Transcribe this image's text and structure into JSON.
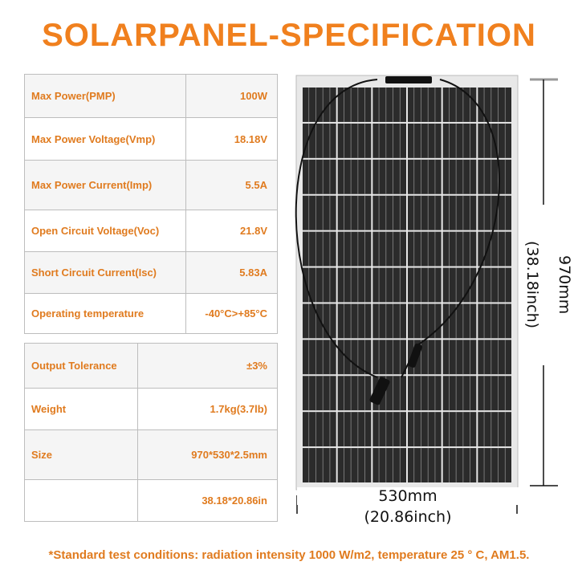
{
  "title": "SOLARPANEL-SPECIFICATION",
  "specs": [
    {
      "label": "Max Power(PMP)",
      "value": "100W"
    },
    {
      "label": "Max Power Voltage(Vmp)",
      "value": "18.18V"
    },
    {
      "label": "Max Power Current(Imp)",
      "value": "5.5A"
    },
    {
      "label": "Open Circuit Voltage(Voc)",
      "value": "21.8V"
    },
    {
      "label": "Short Circuit Current(Isc)",
      "value": "5.83A"
    },
    {
      "label": "Operating temperature",
      "value": "-40°C>+85°C"
    }
  ],
  "specs2": [
    {
      "label": "Output Tolerance",
      "value": "±3%"
    },
    {
      "label": "Weight",
      "value": "1.7kg(3.7lb)"
    },
    {
      "label": "Size",
      "value": "970*530*2.5mm"
    },
    {
      "label": "",
      "value": "38.18*20.86in"
    }
  ],
  "dimensions": {
    "height_mm": "970mm",
    "height_in": "(38.18inch)",
    "width_mm": "530mm",
    "width_in": "(20.86inch)"
  },
  "note": "*Standard test conditions: radiation intensity 1000 W/m2, temperature 25 ° C, AM1.5.",
  "colors": {
    "accent": "#f0801e",
    "text_orange": "#e07b1f"
  }
}
